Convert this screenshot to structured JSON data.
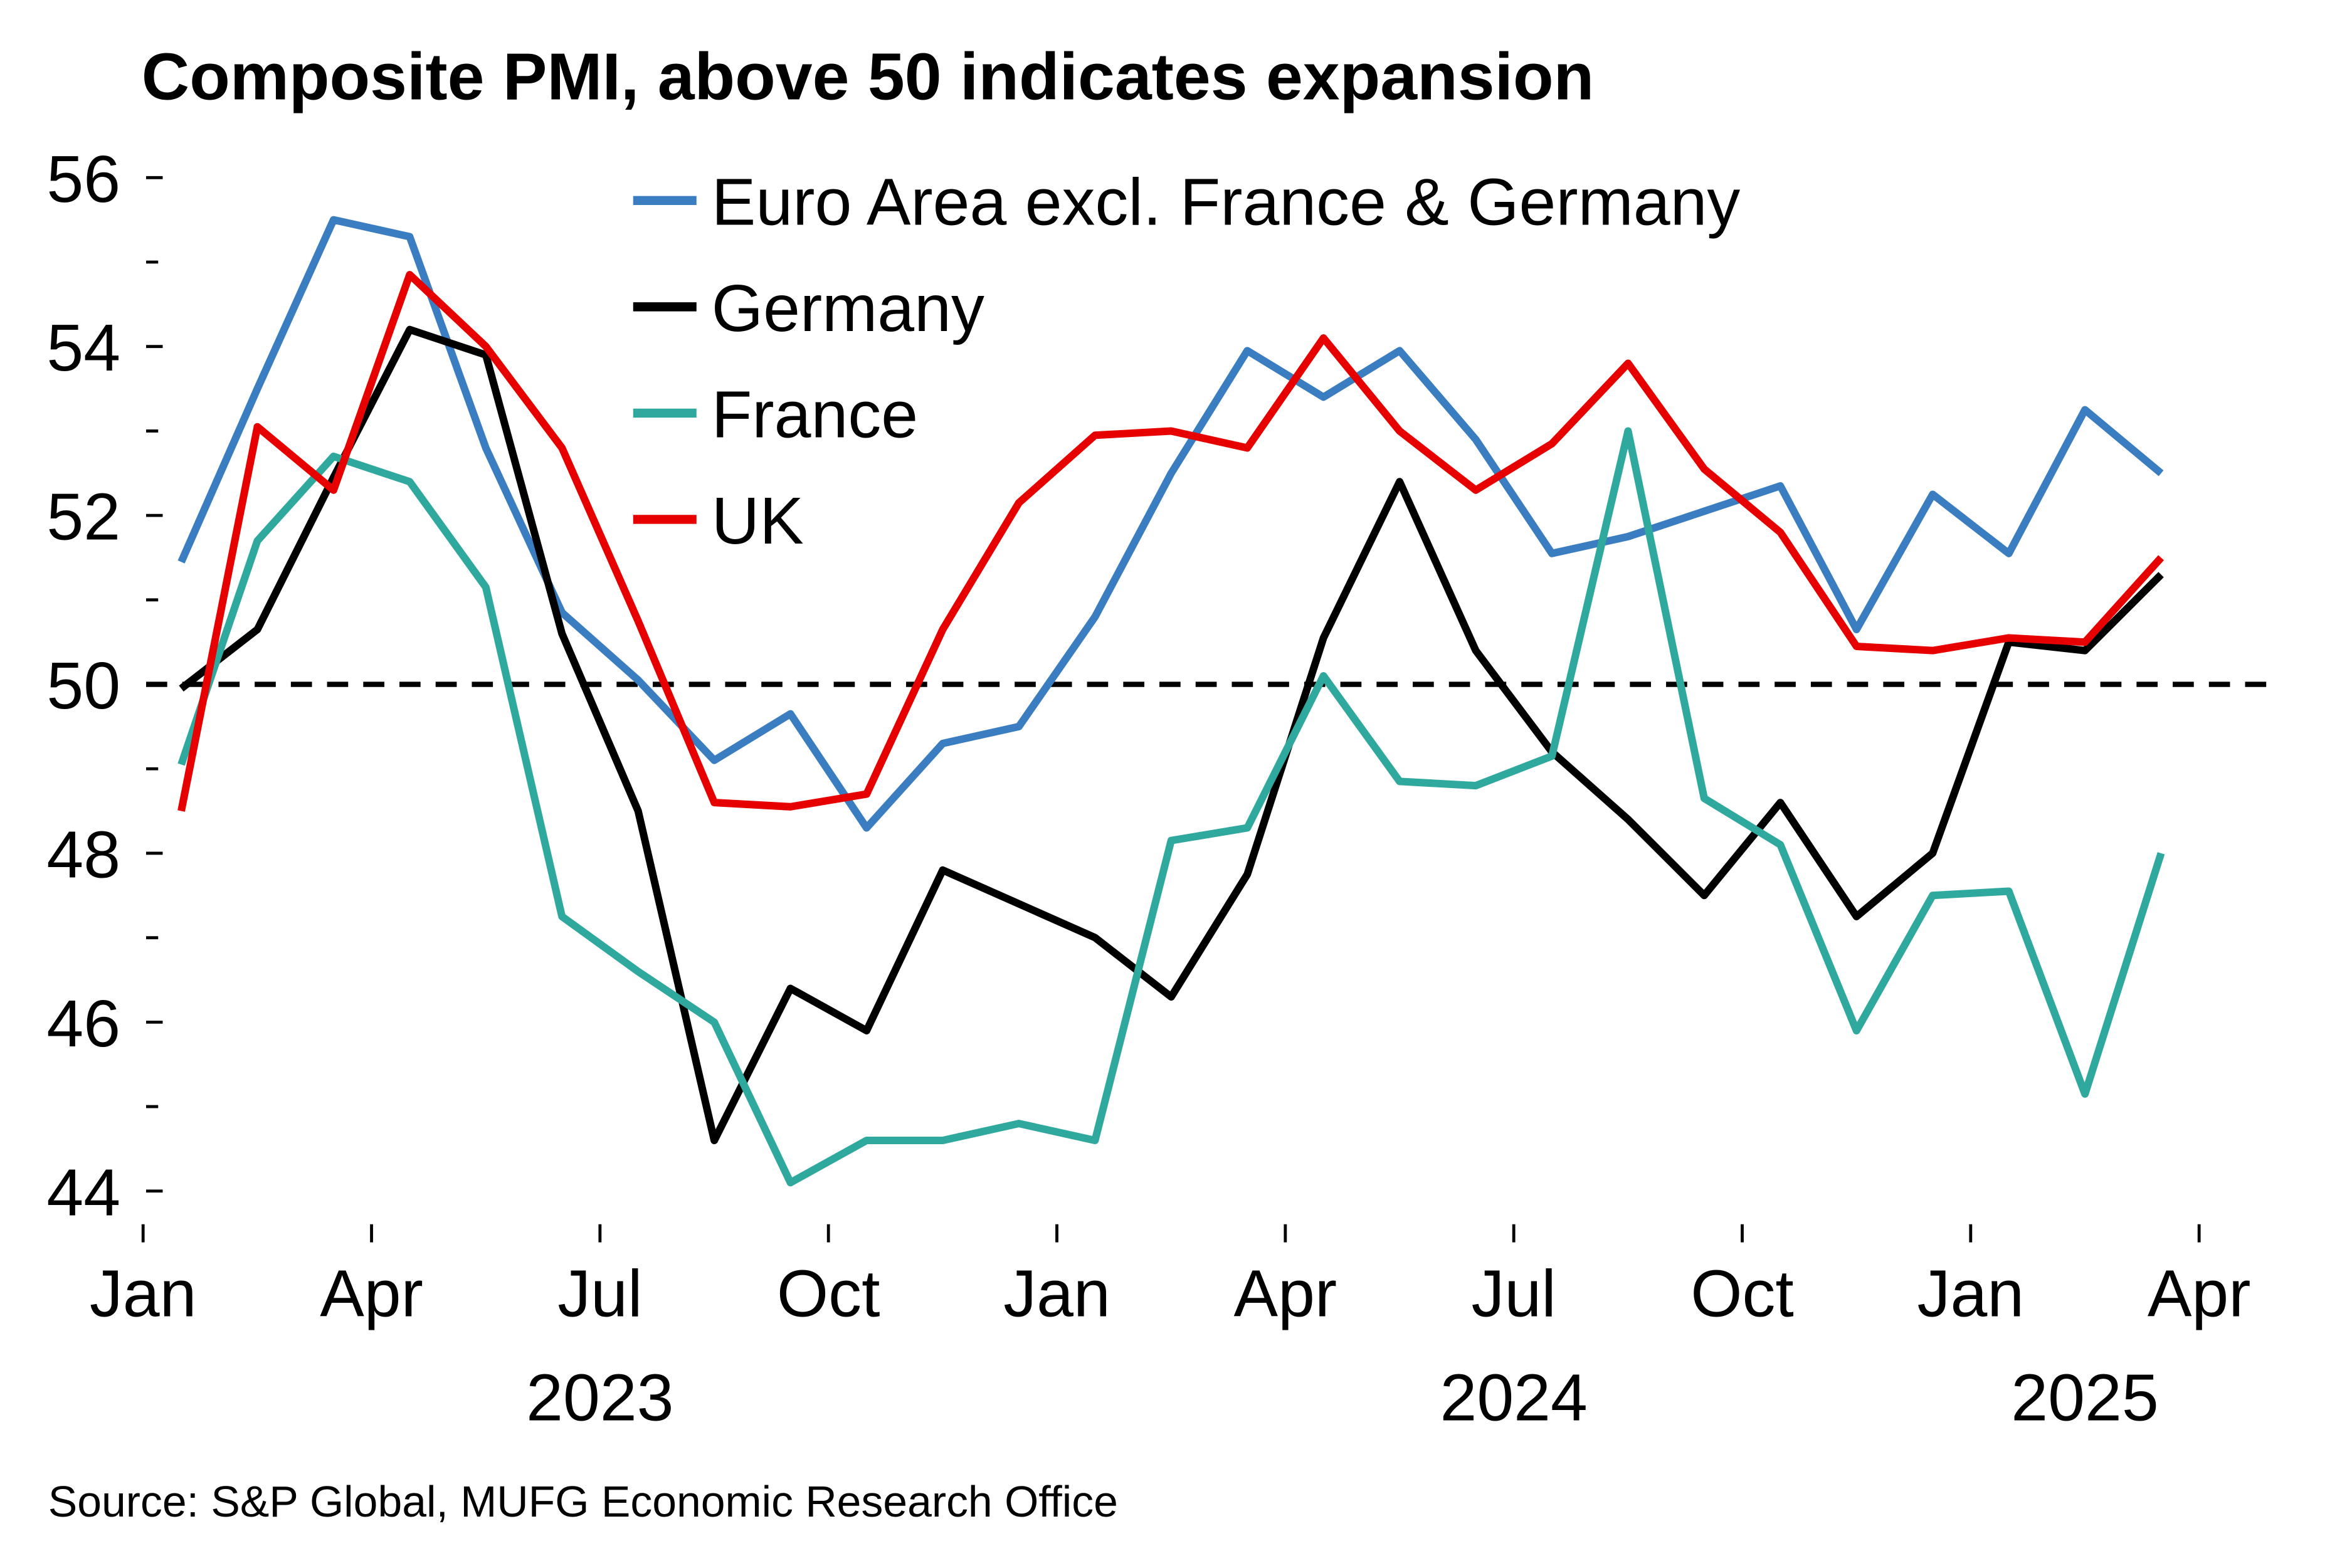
{
  "chart_data": {
    "type": "line",
    "title": "Composite PMI, above 50 indicates expansion",
    "source": "Source: S&P Global, MUFG Economic Research Office",
    "x": [
      "2023-01",
      "2023-02",
      "2023-03",
      "2023-04",
      "2023-05",
      "2023-06",
      "2023-07",
      "2023-08",
      "2023-09",
      "2023-10",
      "2023-11",
      "2023-12",
      "2024-01",
      "2024-02",
      "2024-03",
      "2024-04",
      "2024-05",
      "2024-06",
      "2024-07",
      "2024-08",
      "2024-09",
      "2024-10",
      "2024-11",
      "2024-12",
      "2025-01",
      "2025-02",
      "2025-03"
    ],
    "series": [
      {
        "name": "Euro Area excl. France & Germany",
        "color": "#3a7dc0",
        "values": [
          51.45,
          53.5,
          55.5,
          55.3,
          52.8,
          50.85,
          50.05,
          49.1,
          49.65,
          48.3,
          49.3,
          49.5,
          50.8,
          52.5,
          53.95,
          53.4,
          53.95,
          52.9,
          51.55,
          51.75,
          52.05,
          52.35,
          50.65,
          52.25,
          51.55,
          53.25,
          52.5
        ]
      },
      {
        "name": "Germany",
        "color": "#000000",
        "values": [
          49.95,
          50.65,
          52.45,
          54.2,
          53.9,
          50.6,
          48.5,
          44.6,
          46.4,
          45.9,
          47.8,
          47.4,
          47.0,
          46.3,
          47.75,
          50.55,
          52.4,
          50.4,
          49.2,
          48.4,
          47.5,
          48.6,
          47.25,
          48.0,
          50.5,
          50.4,
          51.3
        ]
      },
      {
        "name": "France",
        "color": "#2fa99e",
        "values": [
          49.05,
          51.7,
          52.7,
          52.4,
          51.15,
          47.25,
          46.6,
          46.0,
          44.1,
          44.6,
          44.6,
          44.8,
          44.6,
          48.15,
          48.3,
          50.1,
          48.85,
          48.8,
          49.15,
          53.0,
          48.65,
          48.1,
          45.9,
          47.5,
          47.55,
          45.15,
          48.0
        ]
      },
      {
        "name": "UK",
        "color": "#e60000",
        "values": [
          48.5,
          53.05,
          52.3,
          54.85,
          54.0,
          52.8,
          50.75,
          48.6,
          48.55,
          48.7,
          50.65,
          52.15,
          52.95,
          53.0,
          52.8,
          54.1,
          53.0,
          52.3,
          52.85,
          53.8,
          52.55,
          51.8,
          50.45,
          50.4,
          50.55,
          50.5,
          51.5
        ]
      }
    ],
    "xlim": [
      "2023-01",
      "2025-05"
    ],
    "xticks": [
      {
        "value": "2023-01",
        "label": "Jan"
      },
      {
        "value": "2023-04",
        "label": "Apr"
      },
      {
        "value": "2023-07",
        "label": "Jul"
      },
      {
        "value": "2023-10",
        "label": "Oct"
      },
      {
        "value": "2024-01",
        "label": "Jan"
      },
      {
        "value": "2024-04",
        "label": "Apr"
      },
      {
        "value": "2024-07",
        "label": "Jul"
      },
      {
        "value": "2024-10",
        "label": "Oct"
      },
      {
        "value": "2025-01",
        "label": "Jan"
      },
      {
        "value": "2025-04",
        "label": "Apr"
      }
    ],
    "year_labels": [
      "2023",
      "2024",
      "2025"
    ],
    "ylim": [
      43.5,
      56.3
    ],
    "yticks": [
      44,
      46,
      48,
      50,
      52,
      54,
      56
    ],
    "yminor_ticks": [
      45,
      47,
      49,
      51,
      53,
      55
    ],
    "reference_line": 50,
    "grid": false,
    "legend": "top"
  }
}
